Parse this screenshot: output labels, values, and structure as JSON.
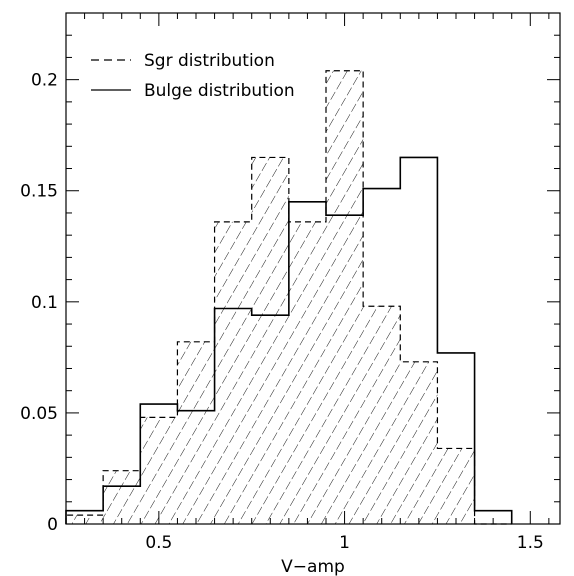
{
  "chart_data": {
    "type": "bar",
    "xlabel": "V−amp",
    "ylabel": "",
    "xlim": [
      0.25,
      1.58
    ],
    "ylim": [
      0,
      0.23
    ],
    "xticks": [
      "0.5",
      "1",
      "1.5"
    ],
    "yticks": [
      "0",
      "0.05",
      "0.1",
      "0.15",
      "0.2"
    ],
    "bin_edges": [
      0.25,
      0.35,
      0.45,
      0.55,
      0.65,
      0.75,
      0.85,
      0.95,
      1.05,
      1.15,
      1.25,
      1.35,
      1.45
    ],
    "legend_position": "top-left",
    "series": [
      {
        "name": "Sgr distribution",
        "style": "dashed-hatched",
        "values": [
          0.004,
          0.024,
          0.048,
          0.082,
          0.136,
          0.165,
          0.136,
          0.204,
          0.098,
          0.073,
          0.034,
          0.0
        ]
      },
      {
        "name": "Bulge distribution",
        "style": "solid",
        "values": [
          0.006,
          0.017,
          0.054,
          0.051,
          0.097,
          0.094,
          0.145,
          0.139,
          0.151,
          0.165,
          0.077,
          0.006
        ]
      }
    ]
  }
}
